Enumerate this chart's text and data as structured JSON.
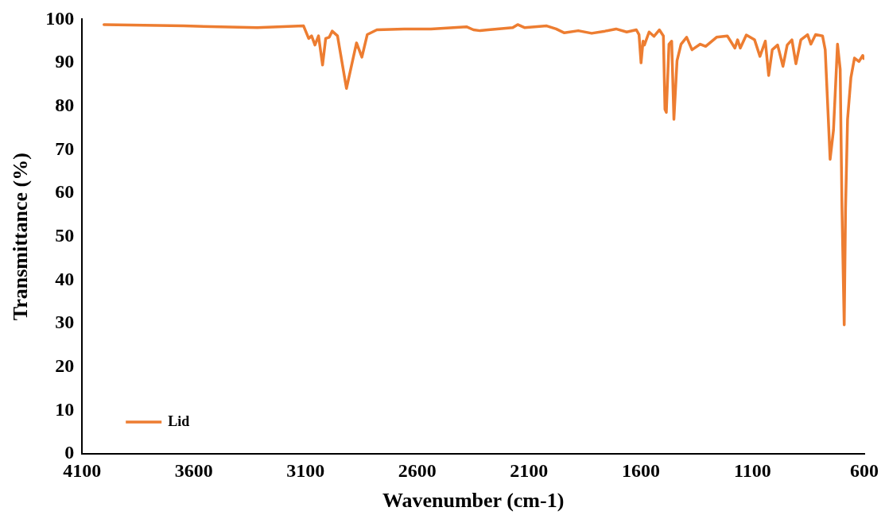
{
  "chart_data": {
    "type": "line",
    "xlabel": "Wavenumber (cm-1)",
    "ylabel": "Transmittance (%)",
    "xlim": [
      4100,
      600
    ],
    "xticks": [
      4100,
      3600,
      3100,
      2600,
      2100,
      1600,
      1100,
      600
    ],
    "ylim": [
      0,
      100
    ],
    "yticks": [
      0,
      10,
      20,
      30,
      40,
      50,
      60,
      70,
      80,
      90,
      100
    ],
    "grid": false,
    "legend": "bottom left",
    "marker": "none",
    "line_style": "solid",
    "series": [
      {
        "name": "Lid",
        "color": "#ed7d31",
        "x": [
          4002,
          3644,
          3316,
          3109,
          3086,
          3073,
          3058,
          3042,
          3024,
          3010,
          2994,
          2981,
          2957,
          2917,
          2872,
          2848,
          2824,
          2781,
          2659,
          2539,
          2380,
          2349,
          2319,
          2283,
          2173,
          2151,
          2119,
          2021,
          1979,
          1942,
          1880,
          1820,
          1760,
          1711,
          1663,
          1620,
          1608,
          1599,
          1590,
          1584,
          1563,
          1541,
          1517,
          1499,
          1492,
          1486,
          1474,
          1462,
          1452,
          1438,
          1420,
          1395,
          1371,
          1334,
          1310,
          1261,
          1213,
          1179,
          1167,
          1155,
          1128,
          1091,
          1067,
          1043,
          1028,
          1012,
          988,
          964,
          945,
          924,
          906,
          884,
          854,
          839,
          818,
          787,
          775,
          753,
          738,
          720,
          708,
          700,
          690,
          684,
          675,
          660,
          644,
          624,
          607,
          603
        ],
        "values": [
          98.8,
          98.5,
          98.1,
          98.5,
          95.6,
          96.2,
          94.1,
          96.2,
          89.5,
          95.6,
          95.9,
          97.3,
          96.2,
          84.1,
          94.6,
          91.3,
          96.5,
          97.6,
          97.8,
          97.8,
          98.3,
          97.6,
          97.4,
          97.6,
          98.1,
          98.8,
          98.1,
          98.5,
          97.8,
          96.9,
          97.4,
          96.8,
          97.3,
          97.8,
          97.1,
          97.6,
          96.5,
          90.0,
          95.0,
          94.1,
          97.1,
          96.1,
          97.6,
          96.2,
          79.3,
          78.6,
          94.3,
          95.0,
          77.0,
          90.5,
          94.3,
          95.9,
          93.0,
          94.3,
          93.8,
          95.9,
          96.2,
          93.4,
          95.3,
          93.4,
          96.4,
          95.3,
          91.5,
          95.0,
          87.1,
          93.0,
          94.1,
          89.2,
          94.1,
          95.3,
          89.8,
          95.3,
          96.5,
          94.3,
          96.5,
          96.2,
          93.0,
          67.8,
          74.5,
          94.3,
          88.5,
          56.6,
          29.7,
          56.6,
          77.0,
          86.6,
          91.1,
          90.3,
          91.7,
          91.0
        ]
      }
    ]
  }
}
